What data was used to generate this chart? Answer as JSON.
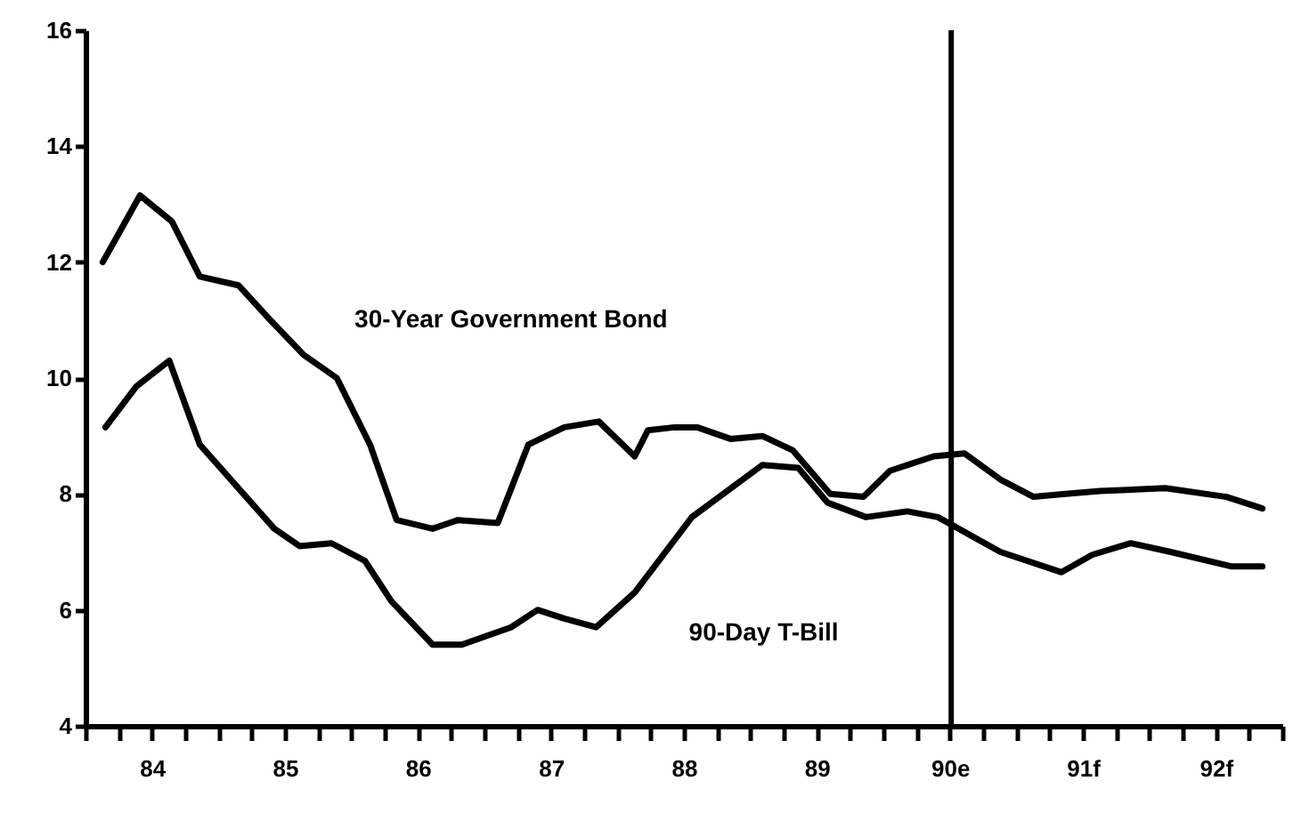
{
  "chart_data": {
    "type": "line",
    "xlim": [
      83.5,
      92.5
    ],
    "ylim": [
      4,
      16
    ],
    "yticks": [
      4,
      6,
      8,
      10,
      12,
      14,
      16
    ],
    "xticks": [
      {
        "value": 83.5,
        "label": null
      },
      {
        "value": 83.75,
        "label": null
      },
      84,
      {
        "value": 84.25,
        "label": null
      },
      {
        "value": 84.5,
        "label": null
      },
      {
        "value": 84.75,
        "label": null
      },
      85,
      {
        "value": 85.25,
        "label": null
      },
      {
        "value": 85.5,
        "label": null
      },
      {
        "value": 85.75,
        "label": null
      },
      86,
      {
        "value": 86.25,
        "label": null
      },
      {
        "value": 86.5,
        "label": null
      },
      {
        "value": 86.75,
        "label": null
      },
      87,
      {
        "value": 87.25,
        "label": null
      },
      {
        "value": 87.5,
        "label": null
      },
      {
        "value": 87.75,
        "label": null
      },
      88,
      {
        "value": 88.25,
        "label": null
      },
      {
        "value": 88.5,
        "label": null
      },
      {
        "value": 88.75,
        "label": null
      },
      89,
      {
        "value": 89.25,
        "label": null
      },
      {
        "value": 89.5,
        "label": null
      },
      {
        "value": 89.75,
        "label": null
      },
      {
        "value": 90,
        "label": "90e"
      },
      {
        "value": 90.25,
        "label": null
      },
      {
        "value": 90.5,
        "label": null
      },
      {
        "value": 90.75,
        "label": null
      },
      {
        "value": 91,
        "label": "91f"
      },
      {
        "value": 91.25,
        "label": null
      },
      {
        "value": 91.5,
        "label": null
      },
      {
        "value": 91.75,
        "label": null
      },
      {
        "value": 92,
        "label": "92f"
      },
      {
        "value": 92.25,
        "label": null
      },
      {
        "value": 92.5,
        "label": null
      }
    ],
    "ref_lines": [
      {
        "axis": "x",
        "value": 90.01,
        "color": "#000000"
      }
    ],
    "series": [
      {
        "name": "30-Year Government Bond",
        "color": "#000000",
        "x": [
          83.63,
          83.91,
          84.15,
          84.36,
          84.65,
          84.89,
          85.14,
          85.39,
          85.64,
          85.84,
          86.11,
          86.3,
          86.6,
          86.83,
          87.1,
          87.36,
          87.63,
          87.73,
          87.93,
          88.1,
          88.35,
          88.59,
          88.82,
          89.1,
          89.35,
          89.55,
          89.88,
          90.11,
          90.38,
          90.63,
          90.87,
          91.13,
          91.62,
          92.08,
          92.35
        ],
        "values": [
          12.0,
          13.15,
          12.7,
          11.75,
          11.6,
          11.0,
          10.4,
          10.0,
          8.85,
          7.55,
          7.4,
          7.55,
          7.5,
          8.85,
          9.15,
          9.25,
          8.65,
          9.1,
          9.15,
          9.15,
          8.95,
          9.0,
          8.75,
          8.0,
          7.95,
          8.4,
          8.65,
          8.7,
          8.25,
          7.95,
          8.0,
          8.05,
          8.1,
          7.95,
          7.75
        ]
      },
      {
        "name": "90-Day T-Bill",
        "color": "#000000",
        "x": [
          83.65,
          83.88,
          84.13,
          84.36,
          84.65,
          84.92,
          85.11,
          85.35,
          85.6,
          85.8,
          86.11,
          86.33,
          86.7,
          86.9,
          87.1,
          87.34,
          87.63,
          88.06,
          88.59,
          88.86,
          89.08,
          89.37,
          89.68,
          89.91,
          90.38,
          90.84,
          91.07,
          91.36,
          91.66,
          92.12,
          92.35
        ],
        "values": [
          9.15,
          9.85,
          10.3,
          8.85,
          8.1,
          7.4,
          7.1,
          7.15,
          6.85,
          6.15,
          5.4,
          5.4,
          5.7,
          6.0,
          5.85,
          5.7,
          6.3,
          7.6,
          8.5,
          8.45,
          7.85,
          7.6,
          7.7,
          7.6,
          7.0,
          6.65,
          6.95,
          7.15,
          7.0,
          6.75,
          6.75
        ]
      }
    ]
  }
}
